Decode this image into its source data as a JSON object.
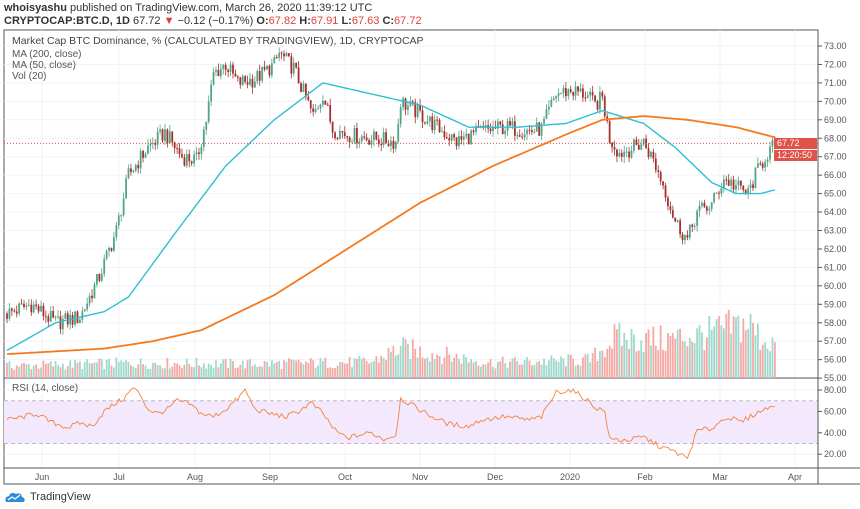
{
  "header": {
    "author": "whoisyashu",
    "published": " published on TradingView.com, March 26, 2020 11:39:12 UTC",
    "symbol": "CRYPTOCAP:BTC.D, 1D",
    "last": "67.72",
    "change": "−0.12 (−0.17%)",
    "o_label": "O:",
    "o": "67.82",
    "h_label": "H:",
    "h": "67.91",
    "l_label": "L:",
    "l": "67.63",
    "c_label": "C:",
    "c": "67.72"
  },
  "legend": {
    "title": "Market Cap BTC Dominance, % (CALCULATED BY TRADINGVIEW), 1D, CRYPTOCAP",
    "ma200": "MA (200, close)",
    "ma50": "MA (50, close)",
    "vol": "Vol (20)",
    "rsi": "RSI (14, close)"
  },
  "price_tag": "67.72",
  "countdown": "12:20:50",
  "footer": {
    "brand": "TradingView"
  },
  "colors": {
    "up": "#53a387",
    "down": "#a3312c",
    "ma200": "#f57a1f",
    "ma50": "#2ebfd0",
    "rsi": "#f5833b",
    "tag": "#e0534a"
  },
  "chart_data": {
    "type": "candlestick",
    "price_ticks": [
      "73.00",
      "72.00",
      "71.00",
      "70.00",
      "69.00",
      "68.00",
      "67.00",
      "66.00",
      "65.00",
      "64.00",
      "63.00",
      "62.00",
      "61.00",
      "60.00",
      "59.00",
      "58.00",
      "57.00",
      "56.00",
      "55.00"
    ],
    "rsi_ticks": [
      "80.00",
      "60.00",
      "40.00",
      "20.00"
    ],
    "x_labels": [
      "Jun",
      "Jul",
      "Aug",
      "Sep",
      "Oct",
      "Nov",
      "Dec",
      "2020",
      "Feb",
      "Mar",
      "Apr"
    ],
    "close_keypoints": [
      [
        0,
        58.5
      ],
      [
        10,
        59
      ],
      [
        20,
        58
      ],
      [
        30,
        58.3
      ],
      [
        38,
        60.5
      ],
      [
        45,
        63
      ],
      [
        50,
        66
      ],
      [
        58,
        67.5
      ],
      [
        65,
        68.3
      ],
      [
        72,
        67
      ],
      [
        78,
        66.8
      ],
      [
        82,
        69
      ],
      [
        85,
        71.5
      ],
      [
        90,
        72
      ],
      [
        95,
        71
      ],
      [
        102,
        71.2
      ],
      [
        110,
        72
      ],
      [
        112,
        72.6
      ],
      [
        118,
        71.8
      ],
      [
        122,
        70.5
      ],
      [
        126,
        69.2
      ],
      [
        130,
        70.4
      ],
      [
        134,
        68.5
      ],
      [
        140,
        68.2
      ],
      [
        150,
        68
      ],
      [
        160,
        67.8
      ],
      [
        162,
        70
      ],
      [
        170,
        69.3
      ],
      [
        178,
        68.5
      ],
      [
        185,
        67.8
      ],
      [
        195,
        68.4
      ],
      [
        205,
        68.6
      ],
      [
        215,
        68.4
      ],
      [
        220,
        68.5
      ],
      [
        226,
        70.4
      ],
      [
        232,
        70.6
      ],
      [
        238,
        70.4
      ],
      [
        242,
        69.8
      ],
      [
        245,
        70.2
      ],
      [
        248,
        68
      ],
      [
        252,
        67.2
      ],
      [
        258,
        67.5
      ],
      [
        262,
        67.8
      ],
      [
        266,
        66.8
      ],
      [
        270,
        65.5
      ],
      [
        275,
        63.5
      ],
      [
        280,
        62.5
      ],
      [
        284,
        64
      ],
      [
        290,
        64.4
      ],
      [
        295,
        65.8
      ],
      [
        300,
        65.4
      ],
      [
        305,
        65
      ],
      [
        308,
        66
      ],
      [
        312,
        67
      ],
      [
        316,
        67.72
      ]
    ],
    "ma200_keypoints": [
      [
        0,
        56.3
      ],
      [
        40,
        56.6
      ],
      [
        60,
        57
      ],
      [
        80,
        57.6
      ],
      [
        110,
        59.5
      ],
      [
        140,
        62
      ],
      [
        170,
        64.5
      ],
      [
        200,
        66.5
      ],
      [
        230,
        68.2
      ],
      [
        245,
        69
      ],
      [
        262,
        69.2
      ],
      [
        280,
        69
      ],
      [
        300,
        68.6
      ],
      [
        316,
        68.05
      ]
    ],
    "ma50_keypoints": [
      [
        0,
        56.5
      ],
      [
        20,
        58
      ],
      [
        40,
        58.6
      ],
      [
        50,
        59.4
      ],
      [
        70,
        63
      ],
      [
        90,
        66.5
      ],
      [
        110,
        69
      ],
      [
        130,
        71
      ],
      [
        150,
        70.4
      ],
      [
        170,
        69.8
      ],
      [
        190,
        68.6
      ],
      [
        210,
        68.6
      ],
      [
        230,
        68.8
      ],
      [
        245,
        69.5
      ],
      [
        262,
        68.8
      ],
      [
        275,
        67.5
      ],
      [
        290,
        65.6
      ],
      [
        300,
        65
      ],
      [
        310,
        65
      ],
      [
        316,
        65.2
      ]
    ],
    "rsi_keypoints": [
      [
        0,
        52
      ],
      [
        5,
        54
      ],
      [
        12,
        58
      ],
      [
        18,
        50
      ],
      [
        25,
        45
      ],
      [
        30,
        49
      ],
      [
        35,
        46
      ],
      [
        40,
        60
      ],
      [
        45,
        68
      ],
      [
        48,
        72
      ],
      [
        52,
        82
      ],
      [
        55,
        75
      ],
      [
        58,
        62
      ],
      [
        62,
        58
      ],
      [
        66,
        62
      ],
      [
        70,
        70
      ],
      [
        75,
        67
      ],
      [
        80,
        58
      ],
      [
        85,
        55
      ],
      [
        90,
        62
      ],
      [
        95,
        72
      ],
      [
        98,
        80
      ],
      [
        102,
        62
      ],
      [
        108,
        58
      ],
      [
        115,
        55
      ],
      [
        120,
        60
      ],
      [
        125,
        68
      ],
      [
        130,
        58
      ],
      [
        135,
        42
      ],
      [
        140,
        35
      ],
      [
        145,
        38
      ],
      [
        150,
        40
      ],
      [
        155,
        34
      ],
      [
        160,
        38
      ],
      [
        162,
        72
      ],
      [
        168,
        64
      ],
      [
        175,
        55
      ],
      [
        182,
        48
      ],
      [
        190,
        46
      ],
      [
        195,
        52
      ],
      [
        205,
        55
      ],
      [
        215,
        52
      ],
      [
        220,
        55
      ],
      [
        226,
        78
      ],
      [
        232,
        80
      ],
      [
        238,
        72
      ],
      [
        242,
        64
      ],
      [
        246,
        60
      ],
      [
        248,
        34
      ],
      [
        255,
        33
      ],
      [
        262,
        36
      ],
      [
        268,
        28
      ],
      [
        275,
        22
      ],
      [
        280,
        16
      ],
      [
        284,
        42
      ],
      [
        290,
        44
      ],
      [
        296,
        55
      ],
      [
        302,
        50
      ],
      [
        308,
        58
      ],
      [
        312,
        62
      ],
      [
        316,
        67
      ]
    ],
    "volume_keypoints": [
      [
        0,
        12
      ],
      [
        50,
        15
      ],
      [
        100,
        14
      ],
      [
        150,
        16
      ],
      [
        162,
        30
      ],
      [
        200,
        15
      ],
      [
        240,
        18
      ],
      [
        250,
        40
      ],
      [
        270,
        38
      ],
      [
        290,
        45
      ],
      [
        305,
        55
      ],
      [
        310,
        40
      ],
      [
        316,
        35
      ]
    ]
  }
}
